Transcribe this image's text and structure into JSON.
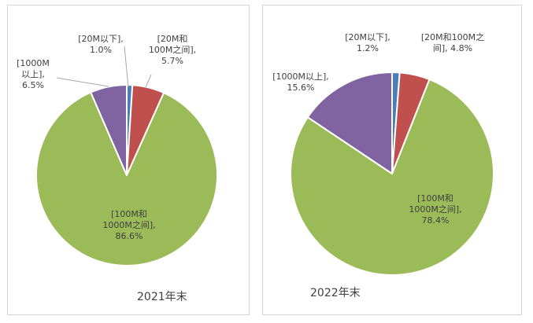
{
  "chart_data": [
    {
      "type": "pie",
      "title": "2021年末",
      "slices": [
        {
          "name": "20M以下",
          "value": 1.0,
          "color": "#4a7ebb",
          "label_lines": [
            "[20M以下],",
            "1.0%"
          ]
        },
        {
          "name": "20M和100M之间",
          "value": 5.7,
          "color": "#c0504d",
          "label_lines": [
            "[20M和",
            "100M之间],",
            "5.7%"
          ]
        },
        {
          "name": "100M和1000M之间",
          "value": 86.6,
          "color": "#9bbb59",
          "label_lines": [
            "[100M和",
            "1000M之间],",
            "86.6%"
          ]
        },
        {
          "name": "1000M以上",
          "value": 6.5,
          "color": "#8064a2",
          "label_lines": [
            "[1000M",
            "以上],",
            "6.5%"
          ]
        }
      ]
    },
    {
      "type": "pie",
      "title": "2022年末",
      "slices": [
        {
          "name": "20M以下",
          "value": 1.2,
          "color": "#4a7ebb",
          "label_lines": [
            "[20M以下],",
            "1.2%"
          ]
        },
        {
          "name": "20M和100M之间",
          "value": 4.8,
          "color": "#c0504d",
          "label_lines": [
            "[20M和100M之",
            "间], 4.8%"
          ]
        },
        {
          "name": "100M和1000M之间",
          "value": 78.4,
          "color": "#9bbb59",
          "label_lines": [
            "[100M和",
            "1000M之间],",
            "78.4%"
          ]
        },
        {
          "name": "1000M以上",
          "value": 15.6,
          "color": "#8064a2",
          "label_lines": [
            "[1000M以上],",
            "15.6%"
          ]
        }
      ]
    }
  ]
}
